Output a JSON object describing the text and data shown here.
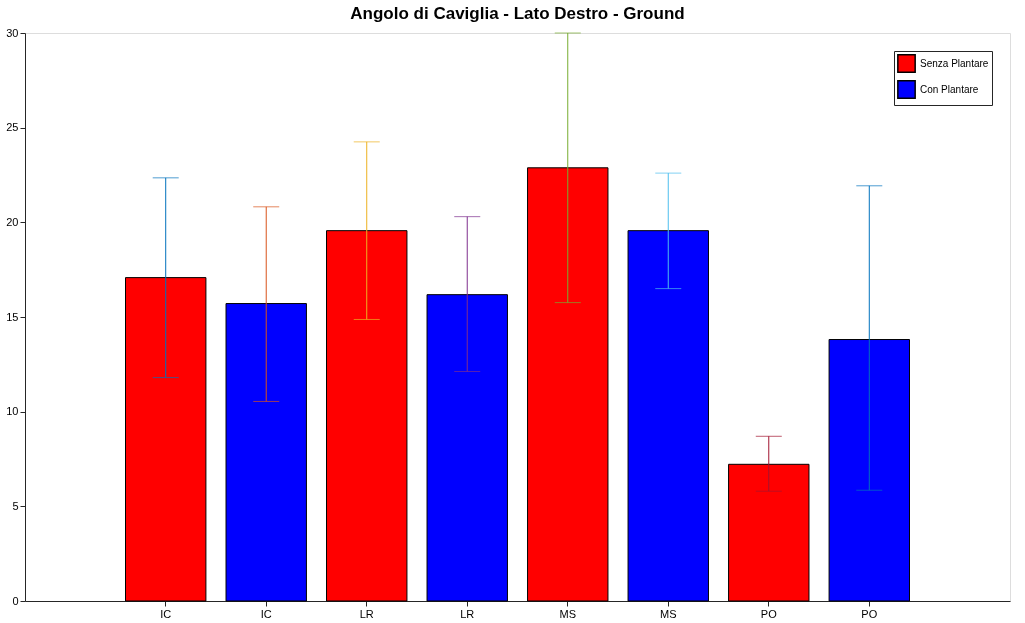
{
  "chart_data": {
    "type": "bar",
    "title": "Angolo di Caviglia - Lato Destro - Ground",
    "categories": [
      "IC",
      "IC",
      "LR",
      "LR",
      "MS",
      "MS",
      "PO",
      "PO"
    ],
    "series": [
      {
        "name": "Senza Plantare",
        "color": "#ff0000",
        "values": [
          17.08,
          null,
          19.56,
          null,
          22.88,
          null,
          7.22,
          null
        ],
        "errors": [
          [
            11.8,
            22.35
          ],
          null,
          [
            14.87,
            24.25
          ],
          null,
          [
            15.76,
            30.0
          ],
          null,
          [
            5.8,
            8.7
          ],
          null
        ]
      },
      {
        "name": "Con Plantare",
        "color": "#0000ff",
        "values": [
          null,
          15.71,
          null,
          16.18,
          null,
          19.56,
          null,
          13.81
        ],
        "errors": [
          null,
          [
            10.54,
            20.82
          ],
          null,
          [
            12.12,
            20.3
          ],
          null,
          [
            16.5,
            22.6
          ],
          null,
          [
            5.85,
            21.93
          ]
        ]
      }
    ],
    "ylim": [
      0,
      30
    ],
    "yticks": [
      0,
      5,
      10,
      15,
      20,
      25,
      30
    ],
    "grid": false,
    "legend": "top right"
  }
}
